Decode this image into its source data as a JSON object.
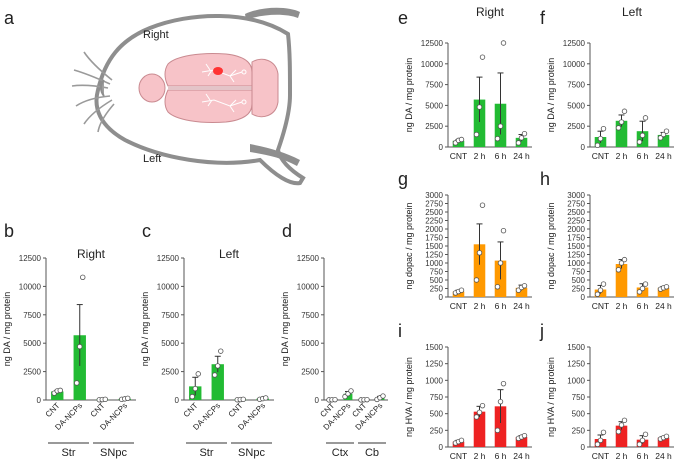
{
  "panel_labels": {
    "a": "a",
    "b": "b",
    "c": "c",
    "d": "d",
    "e": "e",
    "f": "f",
    "g": "g",
    "h": "h",
    "i": "i",
    "j": "j"
  },
  "schematic": {
    "label_right": "Right",
    "label_left": "Left"
  },
  "colors": {
    "green": "#22bb33",
    "orange": "#ff9900",
    "red": "#ee2222",
    "brain": "#f7c3c8",
    "brain_outline": "#c98a90",
    "body": "#888888",
    "marker": "#ff3333"
  },
  "chart_data": [
    {
      "id": "b",
      "type": "bar",
      "title": "Right",
      "ylabel": "ng DA / mg protein",
      "ylim": [
        0,
        12500
      ],
      "yticks": [
        0,
        2500,
        5000,
        7500,
        10000,
        12500
      ],
      "categories": [
        "CNT",
        "DA-NCPs",
        "CNT",
        "DA-NCPs"
      ],
      "groups": [
        "Str",
        "SNpc"
      ],
      "values": [
        750,
        5700,
        40,
        100
      ],
      "errors": [
        100,
        2700,
        20,
        50
      ],
      "points": [
        [
          600,
          800,
          850
        ],
        [
          1500,
          4700,
          10800
        ],
        [
          20,
          40,
          60
        ],
        [
          60,
          100,
          150
        ]
      ],
      "color": "#22bb33"
    },
    {
      "id": "c",
      "type": "bar",
      "title": "Left",
      "ylabel": "ng DA / mg protein",
      "ylim": [
        0,
        12500
      ],
      "yticks": [
        0,
        2500,
        5000,
        7500,
        10000,
        12500
      ],
      "categories": [
        "CNT",
        "DA-NCPs",
        "CNT",
        "DA-NCPs"
      ],
      "groups": [
        "Str",
        "SNpc"
      ],
      "values": [
        1200,
        3150,
        40,
        120
      ],
      "errors": [
        800,
        700,
        20,
        60
      ],
      "points": [
        [
          300,
          1000,
          2300
        ],
        [
          2200,
          3000,
          4300
        ],
        [
          20,
          40,
          60
        ],
        [
          60,
          120,
          180
        ]
      ],
      "color": "#22bb33"
    },
    {
      "id": "d",
      "type": "bar",
      "title": "",
      "ylabel": "ng DA / mg protein",
      "ylim": [
        0,
        12500
      ],
      "yticks": [
        0,
        2500,
        5000,
        7500,
        10000,
        12500
      ],
      "categories": [
        "CNT",
        "DA-NCPs",
        "CNT",
        "DA-NCPs"
      ],
      "groups": [
        "Ctx",
        "Cb"
      ],
      "values": [
        20,
        550,
        20,
        200
      ],
      "errors": [
        10,
        200,
        10,
        120
      ],
      "points": [
        [
          10,
          20,
          30
        ],
        [
          300,
          550,
          800
        ],
        [
          10,
          20,
          30
        ],
        [
          50,
          200,
          350
        ]
      ],
      "color": "#22bb33"
    },
    {
      "id": "e",
      "type": "bar",
      "title": "Right",
      "ylabel": "ng DA / mg protein",
      "ylim": [
        0,
        12500
      ],
      "yticks": [
        0,
        2500,
        5000,
        7500,
        10000,
        12500
      ],
      "categories": [
        "CNT",
        "2 h",
        "6 h",
        "24 h"
      ],
      "values": [
        750,
        5700,
        5200,
        1100
      ],
      "errors": [
        150,
        2700,
        3700,
        400
      ],
      "points": [
        [
          500,
          800,
          900
        ],
        [
          1500,
          4800,
          10800
        ],
        [
          1000,
          2500,
          12500
        ],
        [
          500,
          1100,
          1600
        ]
      ],
      "color": "#22bb33"
    },
    {
      "id": "f",
      "type": "bar",
      "title": "Left",
      "ylabel": "ng DA / mg protein",
      "ylim": [
        0,
        12500
      ],
      "yticks": [
        0,
        2500,
        5000,
        7500,
        10000,
        12500
      ],
      "categories": [
        "CNT",
        "2 h",
        "6 h",
        "24 h"
      ],
      "values": [
        1200,
        3150,
        1900,
        1450
      ],
      "errors": [
        700,
        700,
        1200,
        300
      ],
      "points": [
        [
          200,
          1000,
          2200
        ],
        [
          2300,
          3000,
          4300
        ],
        [
          600,
          1400,
          3500
        ],
        [
          1100,
          1500,
          1900
        ]
      ],
      "color": "#22bb33"
    },
    {
      "id": "g",
      "type": "bar",
      "title": "",
      "ylabel": "ng dopac / mg protein",
      "ylim": [
        0,
        3000
      ],
      "yticks": [
        0,
        250,
        500,
        750,
        1000,
        1250,
        1500,
        1750,
        2000,
        2250,
        2500,
        2750,
        3000
      ],
      "categories": [
        "CNT",
        "2 h",
        "6 h",
        "24 h"
      ],
      "values": [
        160,
        1550,
        1070,
        270
      ],
      "errors": [
        40,
        600,
        550,
        80
      ],
      "points": [
        [
          120,
          160,
          200
        ],
        [
          500,
          1300,
          2700
        ],
        [
          300,
          1000,
          1950
        ],
        [
          200,
          280,
          330
        ]
      ],
      "color": "#ff9900"
    },
    {
      "id": "h",
      "type": "bar",
      "title": "",
      "ylabel": "ng dopac / mg protein",
      "ylim": [
        0,
        3000
      ],
      "yticks": [
        0,
        250,
        500,
        750,
        1000,
        1250,
        1500,
        1750,
        2000,
        2250,
        2500,
        2750,
        3000
      ],
      "categories": [
        "CNT",
        "2 h",
        "6 h",
        "24 h"
      ],
      "values": [
        220,
        970,
        280,
        270
      ],
      "errors": [
        120,
        130,
        110,
        40
      ],
      "points": [
        [
          80,
          200,
          380
        ],
        [
          800,
          1000,
          1100
        ],
        [
          150,
          250,
          380
        ],
        [
          230,
          270,
          300
        ]
      ],
      "color": "#ff9900"
    },
    {
      "id": "i",
      "type": "bar",
      "title": "",
      "ylabel": "ng HVA / mg protein",
      "ylim": [
        0,
        1500
      ],
      "yticks": [
        0,
        250,
        500,
        750,
        1000,
        1250,
        1500
      ],
      "categories": [
        "CNT",
        "2 h",
        "6 h",
        "24 h"
      ],
      "values": [
        80,
        530,
        610,
        150
      ],
      "errors": [
        20,
        80,
        250,
        20
      ],
      "points": [
        [
          60,
          80,
          100
        ],
        [
          450,
          520,
          620
        ],
        [
          250,
          680,
          950
        ],
        [
          130,
          150,
          170
        ]
      ],
      "color": "#ee2222"
    },
    {
      "id": "j",
      "type": "bar",
      "title": "",
      "ylabel": "ng HVA / mg protein",
      "ylim": [
        0,
        1500
      ],
      "yticks": [
        0,
        250,
        500,
        750,
        1000,
        1250,
        1500
      ],
      "categories": [
        "CNT",
        "2 h",
        "6 h",
        "24 h"
      ],
      "values": [
        120,
        320,
        110,
        140
      ],
      "errors": [
        60,
        60,
        60,
        15
      ],
      "points": [
        [
          40,
          100,
          220
        ],
        [
          230,
          330,
          400
        ],
        [
          40,
          100,
          190
        ],
        [
          120,
          140,
          160
        ]
      ],
      "color": "#ee2222"
    }
  ]
}
